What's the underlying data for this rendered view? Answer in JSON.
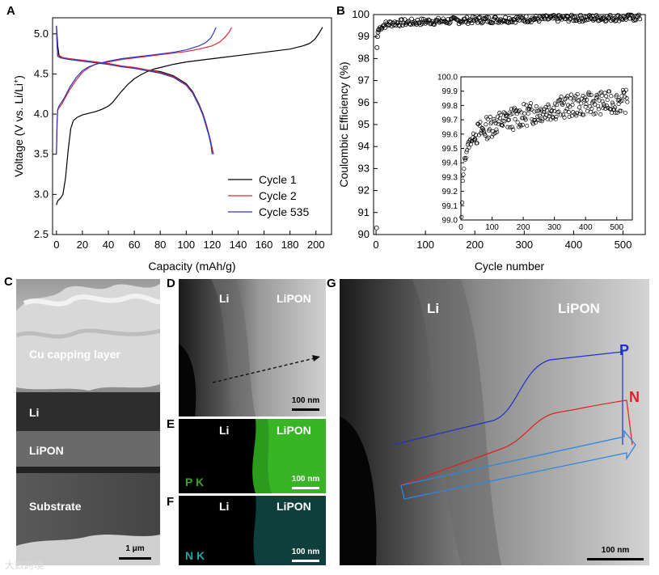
{
  "panels": {
    "A": "A",
    "B": "B",
    "C": "C",
    "D": "D",
    "E": "E",
    "F": "F",
    "G": "G"
  },
  "chart_data": [
    {
      "type": "line",
      "xlabel": "Capacity (mAh/g)",
      "ylabel": "Voltage (V vs. Li/Li+)",
      "ylabel_main": "Voltage (V vs. Li/Li",
      "ylabel_sup": "+",
      "ylabel_tail": ")",
      "xlim": [
        -3,
        212
      ],
      "ylim": [
        2.5,
        5.2
      ],
      "xticks": [
        0,
        20,
        40,
        60,
        80,
        100,
        120,
        140,
        160,
        180,
        200
      ],
      "yticks": [
        2.5,
        3.0,
        3.5,
        4.0,
        4.5,
        5.0
      ],
      "legend_position": "bottom-right",
      "grid": false,
      "series": [
        {
          "name": "Cycle 1",
          "color": "#000000",
          "charge_x": [
            0,
            1,
            3,
            5,
            7,
            9,
            11,
            13,
            16,
            20,
            25,
            30,
            35,
            40,
            43,
            46,
            50,
            55,
            60,
            65,
            70,
            75,
            80,
            90,
            100,
            110,
            120,
            130,
            140,
            150,
            160,
            170,
            180,
            190,
            195,
            199,
            202,
            205
          ],
          "charge_y": [
            2.87,
            2.92,
            2.95,
            3.0,
            3.2,
            3.55,
            3.82,
            3.92,
            3.96,
            3.99,
            4.01,
            4.03,
            4.06,
            4.1,
            4.14,
            4.2,
            4.28,
            4.37,
            4.44,
            4.49,
            4.53,
            4.56,
            4.58,
            4.62,
            4.65,
            4.67,
            4.69,
            4.71,
            4.73,
            4.75,
            4.77,
            4.79,
            4.81,
            4.85,
            4.88,
            4.93,
            5.0,
            5.08
          ],
          "discharge_x": [
            0,
            1,
            2,
            5,
            10,
            20,
            30,
            40,
            50,
            60,
            70,
            80,
            90,
            100,
            105,
            110,
            113,
            115,
            117,
            119,
            120,
            121
          ],
          "discharge_y": [
            5.1,
            4.85,
            4.73,
            4.7,
            4.69,
            4.67,
            4.65,
            4.63,
            4.6,
            4.58,
            4.55,
            4.53,
            4.48,
            4.38,
            4.28,
            4.12,
            4.0,
            3.9,
            3.78,
            3.65,
            3.57,
            3.5
          ]
        },
        {
          "name": "Cycle 2",
          "color": "#e3272f",
          "charge_x": [
            0,
            0.5,
            1,
            2,
            4,
            6,
            10,
            15,
            20,
            25,
            30,
            35,
            40,
            50,
            60,
            70,
            80,
            90,
            100,
            110,
            120,
            126,
            130,
            133,
            135
          ],
          "charge_y": [
            3.5,
            3.9,
            4.05,
            4.08,
            4.12,
            4.18,
            4.3,
            4.42,
            4.52,
            4.58,
            4.62,
            4.64,
            4.65,
            4.68,
            4.7,
            4.72,
            4.74,
            4.76,
            4.78,
            4.81,
            4.85,
            4.9,
            4.96,
            5.02,
            5.08
          ],
          "discharge_x": [
            0,
            0.5,
            1,
            3,
            10,
            20,
            30,
            40,
            50,
            60,
            70,
            80,
            90,
            100,
            105,
            110,
            113,
            115,
            117,
            119,
            120,
            121
          ],
          "discharge_y": [
            5.1,
            4.88,
            4.74,
            4.71,
            4.69,
            4.67,
            4.65,
            4.63,
            4.6,
            4.58,
            4.55,
            4.52,
            4.47,
            4.37,
            4.27,
            4.11,
            3.99,
            3.89,
            3.77,
            3.64,
            3.56,
            3.5
          ]
        },
        {
          "name": "Cycle 535",
          "color": "#2b38c9",
          "charge_x": [
            0,
            0.5,
            1,
            2,
            4,
            6,
            10,
            15,
            20,
            25,
            30,
            35,
            40,
            50,
            60,
            70,
            80,
            90,
            100,
            110,
            115,
            119,
            121,
            123
          ],
          "charge_y": [
            3.5,
            3.9,
            4.06,
            4.1,
            4.15,
            4.2,
            4.33,
            4.45,
            4.54,
            4.59,
            4.62,
            4.64,
            4.66,
            4.69,
            4.71,
            4.73,
            4.75,
            4.77,
            4.8,
            4.85,
            4.89,
            4.95,
            5.01,
            5.08
          ],
          "discharge_x": [
            0,
            0.5,
            1,
            3,
            10,
            20,
            30,
            40,
            50,
            60,
            70,
            80,
            90,
            100,
            105,
            110,
            113,
            115,
            117,
            119,
            120
          ],
          "discharge_y": [
            5.1,
            4.86,
            4.72,
            4.7,
            4.68,
            4.66,
            4.64,
            4.62,
            4.59,
            4.57,
            4.54,
            4.51,
            4.46,
            4.36,
            4.26,
            4.1,
            3.98,
            3.87,
            3.76,
            3.62,
            3.5
          ]
        }
      ]
    },
    {
      "type": "scatter",
      "xlabel": "Cycle number",
      "ylabel": "Coulombic Efficiency (%)",
      "xlim": [
        -5,
        545
      ],
      "ylim": [
        90,
        100
      ],
      "xticks": [
        0,
        100,
        200,
        300,
        400,
        500
      ],
      "yticks": [
        90,
        91,
        92,
        93,
        94,
        95,
        96,
        97,
        98,
        99,
        100
      ],
      "marker": "open-circle",
      "first_points": [
        {
          "x": 1,
          "y": 90.3
        },
        {
          "x": 2,
          "y": 98.5
        },
        {
          "x": 3,
          "y": 99.0
        },
        {
          "x": 4,
          "y": 99.2
        },
        {
          "x": 5,
          "y": 99.3
        }
      ],
      "trend": [
        [
          5,
          99.3
        ],
        [
          10,
          99.45
        ],
        [
          20,
          99.55
        ],
        [
          30,
          99.6
        ],
        [
          50,
          99.63
        ],
        [
          100,
          99.68
        ],
        [
          200,
          99.75
        ],
        [
          300,
          99.8
        ],
        [
          400,
          99.83
        ],
        [
          535,
          99.87
        ]
      ],
      "inset": {
        "xlim": [
          0,
          550
        ],
        "ylim": [
          99.0,
          100.0
        ],
        "xticks": [
          0,
          100,
          200,
          300,
          400,
          500
        ],
        "yticks": [
          99.0,
          99.1,
          99.2,
          99.3,
          99.4,
          99.5,
          99.6,
          99.7,
          99.8,
          99.9,
          100.0
        ],
        "ytick_labels": [
          "99.0",
          "99.1",
          "99.2",
          "99.3",
          "99.4",
          "99.5",
          "99.6",
          "99.7",
          "99.8",
          "99.9",
          "100.0"
        ],
        "trend": [
          [
            3,
            99.05
          ],
          [
            6,
            99.25
          ],
          [
            10,
            99.38
          ],
          [
            15,
            99.45
          ],
          [
            20,
            99.5
          ],
          [
            30,
            99.55
          ],
          [
            50,
            99.6
          ],
          [
            80,
            99.64
          ],
          [
            120,
            99.68
          ],
          [
            200,
            99.73
          ],
          [
            300,
            99.78
          ],
          [
            400,
            99.81
          ],
          [
            535,
            99.83
          ]
        ],
        "scatter_sd": [
          0.0,
          0.06,
          0.05,
          0.04,
          0.045,
          0.05,
          0.06
        ]
      }
    }
  ],
  "panel_c": {
    "cu_label": "Cu capping layer",
    "li_label": "Li",
    "lipon_label": "LiPON",
    "substrate_label": "Substrate",
    "scale": "1 μm"
  },
  "panel_d": {
    "li": "Li",
    "lipon": "LiPON",
    "scale": "100 nm"
  },
  "panel_e": {
    "li": "Li",
    "lipon": "LiPON",
    "element": "P K",
    "scale": "100 nm",
    "color": "#32a81e"
  },
  "panel_f": {
    "li": "Li",
    "lipon": "LiPON",
    "element": "N K",
    "scale": "100 nm",
    "color": "#1fa8a0"
  },
  "panel_g": {
    "li": "Li",
    "lipon": "LiPON",
    "p_label": "P",
    "n_label": "N",
    "scale": "100 nm",
    "p_color": "#1f30d0",
    "n_color": "#e02020",
    "arrow_color": "#2f86dc"
  },
  "watermark": "大数跨境"
}
